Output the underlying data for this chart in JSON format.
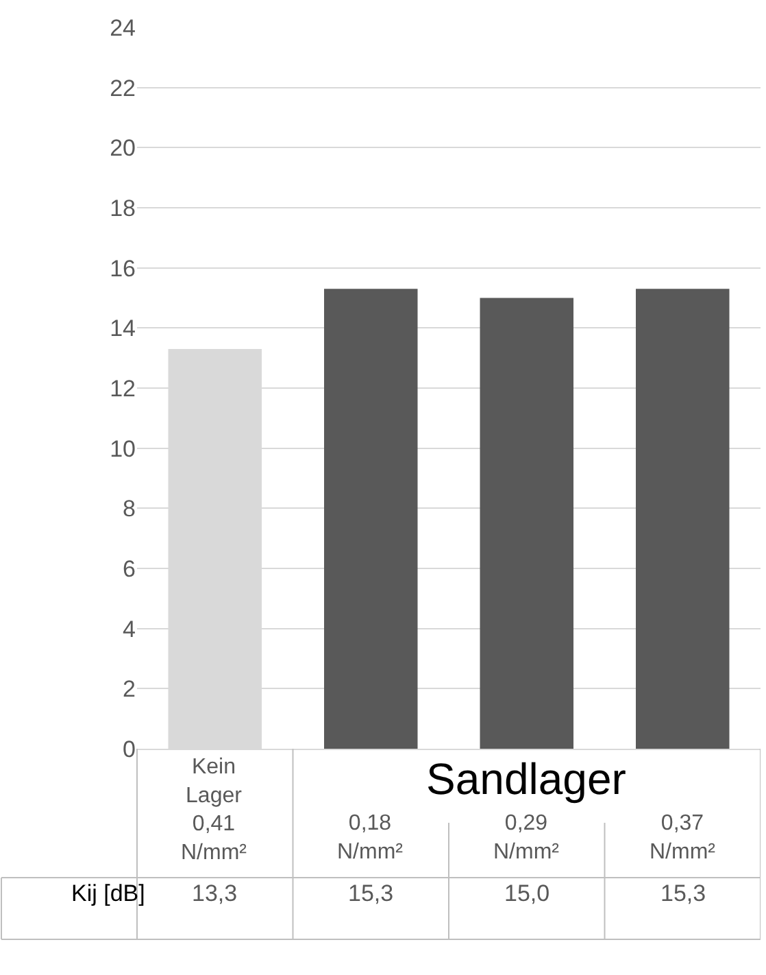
{
  "chart_data": {
    "type": "bar",
    "categories": [
      "Kein\nLager\n0,41\nN/mm²",
      "0,18\nN/mm²",
      "0,29\nN/mm²",
      "0,37\nN/mm²"
    ],
    "series": [
      {
        "name": "Kij [dB]",
        "colors": [
          "#d9d9d9",
          "#595959",
          "#595959",
          "#595959"
        ],
        "values": [
          13.3,
          15.3,
          15.0,
          15.3
        ],
        "value_labels": [
          "13,3",
          "15,3",
          "15,0",
          "15,3"
        ]
      }
    ],
    "annotations": [
      "Sandlager"
    ],
    "ylim": [
      0,
      24
    ],
    "yticks": [
      0,
      2,
      4,
      6,
      8,
      10,
      12,
      14,
      16,
      18,
      20,
      22,
      24
    ],
    "grid": "y",
    "legend": false
  }
}
